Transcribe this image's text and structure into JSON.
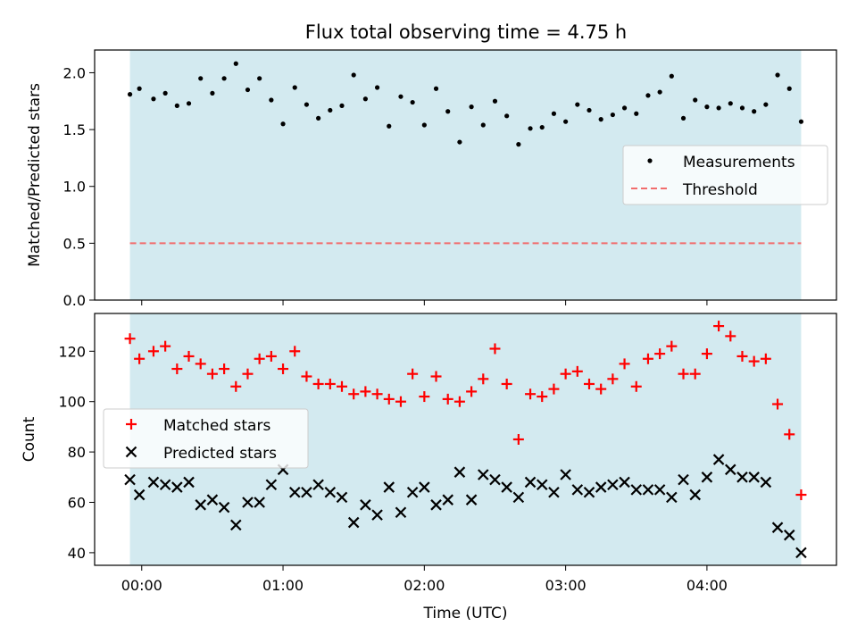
{
  "figure": {
    "title": "Flux total observing time = 4.75 h",
    "xlabel": "Time (UTC)",
    "x_ticks": [
      {
        "value": 0,
        "label": "00:00"
      },
      {
        "value": 60,
        "label": "01:00"
      },
      {
        "value": 120,
        "label": "02:00"
      },
      {
        "value": 180,
        "label": "03:00"
      },
      {
        "value": 240,
        "label": "04:00"
      }
    ],
    "xlim": [
      -20,
      295
    ],
    "shaded_span": [
      -5,
      280
    ],
    "colors": {
      "shade": "#d3eaf0",
      "measure": "#000000",
      "threshold": "#f26d6d",
      "matched": "#ff0000",
      "predicted": "#000000"
    }
  },
  "chart_data": [
    {
      "type": "scatter",
      "ylabel": "Matched/Predicted stars",
      "ylim": [
        0,
        2.2
      ],
      "y_ticks": [
        "0.0",
        "0.5",
        "1.0",
        "1.5",
        "2.0"
      ],
      "legend_position": "center-right",
      "threshold": {
        "name": "Threshold",
        "value": 0.5
      },
      "series": [
        {
          "name": "Measurements",
          "x": [
            -5,
            -1,
            5,
            10,
            15,
            20,
            25,
            30,
            35,
            40,
            45,
            50,
            55,
            60,
            65,
            70,
            75,
            80,
            85,
            90,
            95,
            100,
            105,
            110,
            115,
            120,
            125,
            130,
            135,
            140,
            145,
            150,
            155,
            160,
            165,
            170,
            175,
            180,
            185,
            190,
            195,
            200,
            205,
            210,
            215,
            220,
            225,
            230,
            235,
            240,
            245,
            250,
            255,
            260,
            265,
            270,
            275,
            280
          ],
          "y": [
            1.81,
            1.86,
            1.77,
            1.82,
            1.71,
            1.73,
            1.95,
            1.82,
            1.95,
            2.08,
            1.85,
            1.95,
            1.76,
            1.55,
            1.87,
            1.72,
            1.6,
            1.67,
            1.71,
            1.98,
            1.77,
            1.87,
            1.53,
            1.79,
            1.74,
            1.54,
            1.86,
            1.66,
            1.39,
            1.7,
            1.54,
            1.75,
            1.62,
            1.37,
            1.51,
            1.52,
            1.64,
            1.57,
            1.72,
            1.67,
            1.59,
            1.63,
            1.69,
            1.64,
            1.8,
            1.83,
            1.97,
            1.6,
            1.76,
            1.7,
            1.69,
            1.73,
            1.69,
            1.66,
            1.72,
            1.98,
            1.86,
            1.57
          ]
        }
      ]
    },
    {
      "type": "scatter",
      "ylabel": "Count",
      "ylim": [
        35,
        135
      ],
      "y_ticks": [
        "40",
        "60",
        "80",
        "100",
        "120"
      ],
      "legend_position": "center-left",
      "series": [
        {
          "name": "Matched stars",
          "marker": "plus",
          "x": [
            -5,
            -1,
            5,
            10,
            15,
            20,
            25,
            30,
            35,
            40,
            45,
            50,
            55,
            60,
            65,
            70,
            75,
            80,
            85,
            90,
            95,
            100,
            105,
            110,
            115,
            120,
            125,
            130,
            135,
            140,
            145,
            150,
            155,
            160,
            165,
            170,
            175,
            180,
            185,
            190,
            195,
            200,
            205,
            210,
            215,
            220,
            225,
            230,
            235,
            240,
            245,
            250,
            255,
            260,
            265,
            270,
            275,
            280
          ],
          "y": [
            125,
            117,
            120,
            122,
            113,
            118,
            115,
            111,
            113,
            106,
            111,
            117,
            118,
            113,
            120,
            110,
            107,
            107,
            106,
            103,
            104,
            103,
            101,
            100,
            111,
            102,
            110,
            101,
            100,
            104,
            109,
            121,
            107,
            85,
            103,
            102,
            105,
            111,
            112,
            107,
            105,
            109,
            115,
            106,
            117,
            119,
            122,
            111,
            111,
            119,
            130,
            126,
            118,
            116,
            117,
            99,
            87,
            63
          ]
        },
        {
          "name": "Predicted stars",
          "marker": "x",
          "x": [
            -5,
            -1,
            5,
            10,
            15,
            20,
            25,
            30,
            35,
            40,
            45,
            50,
            55,
            60,
            65,
            70,
            75,
            80,
            85,
            90,
            95,
            100,
            105,
            110,
            115,
            120,
            125,
            130,
            135,
            140,
            145,
            150,
            155,
            160,
            165,
            170,
            175,
            180,
            185,
            190,
            195,
            200,
            205,
            210,
            215,
            220,
            225,
            230,
            235,
            240,
            245,
            250,
            255,
            260,
            265,
            270,
            275,
            280
          ],
          "y": [
            69,
            63,
            68,
            67,
            66,
            68,
            59,
            61,
            58,
            51,
            60,
            60,
            67,
            73,
            64,
            64,
            67,
            64,
            62,
            52,
            59,
            55,
            66,
            56,
            64,
            66,
            59,
            61,
            72,
            61,
            71,
            69,
            66,
            62,
            68,
            67,
            64,
            71,
            65,
            64,
            66,
            67,
            68,
            65,
            65,
            65,
            62,
            69,
            63,
            70,
            77,
            73,
            70,
            70,
            68,
            50,
            47,
            40
          ]
        }
      ]
    }
  ]
}
